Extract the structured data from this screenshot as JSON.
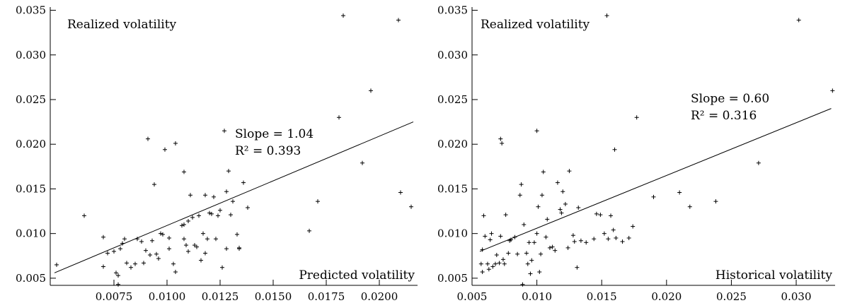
{
  "chart_data": [
    {
      "type": "scatter",
      "title": "",
      "ylabel": "Realized volatility",
      "xlabel": "Predicted volatility",
      "xlim": [
        0.0045,
        0.0218
      ],
      "ylim": [
        0.0042,
        0.0352
      ],
      "xticks": [
        0.0075,
        0.01,
        0.0125,
        0.015,
        0.0175,
        0.02
      ],
      "xtick_labels": [
        "0.0075",
        "0.0100",
        "0.0125",
        "0.0150",
        "0.0175",
        "0.0200"
      ],
      "yticks": [
        0.005,
        0.01,
        0.015,
        0.02,
        0.025,
        0.03,
        0.035
      ],
      "ytick_labels": [
        "0.005",
        "0.010",
        "0.015",
        "0.020",
        "0.025",
        "0.030",
        "0.035"
      ],
      "annotations": [
        "Slope = 1.04",
        "R² = 0.393"
      ],
      "fit_line": {
        "slope": 1.04,
        "r2": 0.393,
        "x": [
          0.0047,
          0.0216
        ],
        "y": [
          0.0056,
          0.0225
        ]
      },
      "marker_color": "#000000",
      "points": [
        [
          0.0048,
          0.0065
        ],
        [
          0.0061,
          0.012
        ],
        [
          0.007,
          0.0096
        ],
        [
          0.007,
          0.0063
        ],
        [
          0.0072,
          0.0078
        ],
        [
          0.0075,
          0.008
        ],
        [
          0.0076,
          0.0056
        ],
        [
          0.0077,
          0.0053
        ],
        [
          0.0077,
          0.0043
        ],
        [
          0.0078,
          0.0083
        ],
        [
          0.0079,
          0.0089
        ],
        [
          0.008,
          0.0094
        ],
        [
          0.0081,
          0.0067
        ],
        [
          0.0083,
          0.0062
        ],
        [
          0.0085,
          0.0066
        ],
        [
          0.0086,
          0.0094
        ],
        [
          0.0088,
          0.0091
        ],
        [
          0.0089,
          0.0067
        ],
        [
          0.009,
          0.0081
        ],
        [
          0.0091,
          0.0206
        ],
        [
          0.0092,
          0.0076
        ],
        [
          0.0093,
          0.0092
        ],
        [
          0.0094,
          0.0155
        ],
        [
          0.0095,
          0.0077
        ],
        [
          0.0096,
          0.0072
        ],
        [
          0.0097,
          0.01
        ],
        [
          0.0098,
          0.0099
        ],
        [
          0.0099,
          0.0194
        ],
        [
          0.0101,
          0.0095
        ],
        [
          0.0101,
          0.0083
        ],
        [
          0.0103,
          0.0066
        ],
        [
          0.0104,
          0.0201
        ],
        [
          0.0104,
          0.0057
        ],
        [
          0.0107,
          0.0109
        ],
        [
          0.0108,
          0.0169
        ],
        [
          0.0108,
          0.011
        ],
        [
          0.0108,
          0.0094
        ],
        [
          0.0109,
          0.0087
        ],
        [
          0.011,
          0.008
        ],
        [
          0.011,
          0.0114
        ],
        [
          0.0111,
          0.0143
        ],
        [
          0.0112,
          0.0118
        ],
        [
          0.0113,
          0.0087
        ],
        [
          0.0114,
          0.0085
        ],
        [
          0.0115,
          0.012
        ],
        [
          0.0116,
          0.007
        ],
        [
          0.0117,
          0.01
        ],
        [
          0.0118,
          0.0078
        ],
        [
          0.0118,
          0.0143
        ],
        [
          0.0119,
          0.0094
        ],
        [
          0.012,
          0.0123
        ],
        [
          0.0121,
          0.0122
        ],
        [
          0.0122,
          0.0141
        ],
        [
          0.0123,
          0.0094
        ],
        [
          0.0124,
          0.012
        ],
        [
          0.0125,
          0.0126
        ],
        [
          0.0126,
          0.0062
        ],
        [
          0.0127,
          0.0215
        ],
        [
          0.0128,
          0.0147
        ],
        [
          0.0128,
          0.0083
        ],
        [
          0.0129,
          0.017
        ],
        [
          0.013,
          0.0121
        ],
        [
          0.0131,
          0.0136
        ],
        [
          0.0133,
          0.0099
        ],
        [
          0.0134,
          0.0084
        ],
        [
          0.0134,
          0.0083
        ],
        [
          0.0136,
          0.0157
        ],
        [
          0.0138,
          0.0129
        ],
        [
          0.0167,
          0.0103
        ],
        [
          0.0171,
          0.0136
        ],
        [
          0.0181,
          0.023
        ],
        [
          0.0183,
          0.0344
        ],
        [
          0.0192,
          0.0179
        ],
        [
          0.0196,
          0.026
        ],
        [
          0.0209,
          0.0339
        ],
        [
          0.021,
          0.0146
        ],
        [
          0.0215,
          0.013
        ]
      ]
    },
    {
      "type": "scatter",
      "title": "",
      "ylabel": "Realized volatility",
      "xlabel": "Historical volatility",
      "xlim": [
        0.005,
        0.033
      ],
      "ylim": [
        0.0042,
        0.0352
      ],
      "xticks": [
        0.005,
        0.01,
        0.015,
        0.02,
        0.025,
        0.03
      ],
      "xtick_labels": [
        "0.005",
        "0.010",
        "0.015",
        "0.020",
        "0.025",
        "0.030"
      ],
      "yticks": [
        0.005,
        0.01,
        0.015,
        0.02,
        0.025,
        0.03,
        0.035
      ],
      "ytick_labels": [
        "0.005",
        "0.010",
        "0.015",
        "0.020",
        "0.025",
        "0.030",
        "0.035"
      ],
      "annotations": [
        "Slope = 0.60",
        "R² = 0.316"
      ],
      "fit_line": {
        "slope": 0.6,
        "r2": 0.316,
        "x": [
          0.0056,
          0.0327
        ],
        "y": [
          0.008,
          0.024
        ]
      },
      "marker_color": "#000000",
      "points": [
        [
          0.0057,
          0.0066
        ],
        [
          0.0058,
          0.0082
        ],
        [
          0.0058,
          0.0057
        ],
        [
          0.0059,
          0.012
        ],
        [
          0.006,
          0.0097
        ],
        [
          0.0062,
          0.0066
        ],
        [
          0.0063,
          0.006
        ],
        [
          0.0064,
          0.0093
        ],
        [
          0.0065,
          0.01
        ],
        [
          0.0066,
          0.0063
        ],
        [
          0.0068,
          0.0066
        ],
        [
          0.0069,
          0.0076
        ],
        [
          0.0071,
          0.0067
        ],
        [
          0.0072,
          0.0097
        ],
        [
          0.0072,
          0.0206
        ],
        [
          0.0073,
          0.0201
        ],
        [
          0.0074,
          0.0071
        ],
        [
          0.0075,
          0.0066
        ],
        [
          0.0076,
          0.0121
        ],
        [
          0.0078,
          0.0078
        ],
        [
          0.0079,
          0.0092
        ],
        [
          0.008,
          0.0093
        ],
        [
          0.0083,
          0.0096
        ],
        [
          0.0085,
          0.0077
        ],
        [
          0.0087,
          0.0143
        ],
        [
          0.0088,
          0.0155
        ],
        [
          0.0089,
          0.0043
        ],
        [
          0.009,
          0.011
        ],
        [
          0.0092,
          0.0078
        ],
        [
          0.0093,
          0.0066
        ],
        [
          0.0094,
          0.009
        ],
        [
          0.0095,
          0.0055
        ],
        [
          0.0096,
          0.007
        ],
        [
          0.0098,
          0.009
        ],
        [
          0.01,
          0.0215
        ],
        [
          0.01,
          0.01
        ],
        [
          0.0101,
          0.013
        ],
        [
          0.0102,
          0.0057
        ],
        [
          0.0103,
          0.0077
        ],
        [
          0.0104,
          0.0143
        ],
        [
          0.0105,
          0.0169
        ],
        [
          0.0107,
          0.0096
        ],
        [
          0.0108,
          0.0116
        ],
        [
          0.011,
          0.0084
        ],
        [
          0.0112,
          0.0085
        ],
        [
          0.0114,
          0.0081
        ],
        [
          0.0116,
          0.0157
        ],
        [
          0.0118,
          0.0127
        ],
        [
          0.0119,
          0.0123
        ],
        [
          0.012,
          0.0147
        ],
        [
          0.0122,
          0.0133
        ],
        [
          0.0124,
          0.0084
        ],
        [
          0.0125,
          0.017
        ],
        [
          0.0128,
          0.0098
        ],
        [
          0.0129,
          0.0091
        ],
        [
          0.0131,
          0.0062
        ],
        [
          0.0132,
          0.0129
        ],
        [
          0.0134,
          0.0092
        ],
        [
          0.0138,
          0.009
        ],
        [
          0.0144,
          0.0094
        ],
        [
          0.0146,
          0.0122
        ],
        [
          0.0149,
          0.0121
        ],
        [
          0.0152,
          0.01
        ],
        [
          0.0154,
          0.0344
        ],
        [
          0.0155,
          0.0094
        ],
        [
          0.0157,
          0.012
        ],
        [
          0.0159,
          0.0104
        ],
        [
          0.016,
          0.0194
        ],
        [
          0.0161,
          0.0095
        ],
        [
          0.0166,
          0.0091
        ],
        [
          0.0171,
          0.0095
        ],
        [
          0.0174,
          0.0108
        ],
        [
          0.0177,
          0.023
        ],
        [
          0.019,
          0.0141
        ],
        [
          0.021,
          0.0146
        ],
        [
          0.0218,
          0.013
        ],
        [
          0.0238,
          0.0136
        ],
        [
          0.0271,
          0.0179
        ],
        [
          0.0302,
          0.0339
        ],
        [
          0.0328,
          0.026
        ]
      ]
    }
  ]
}
